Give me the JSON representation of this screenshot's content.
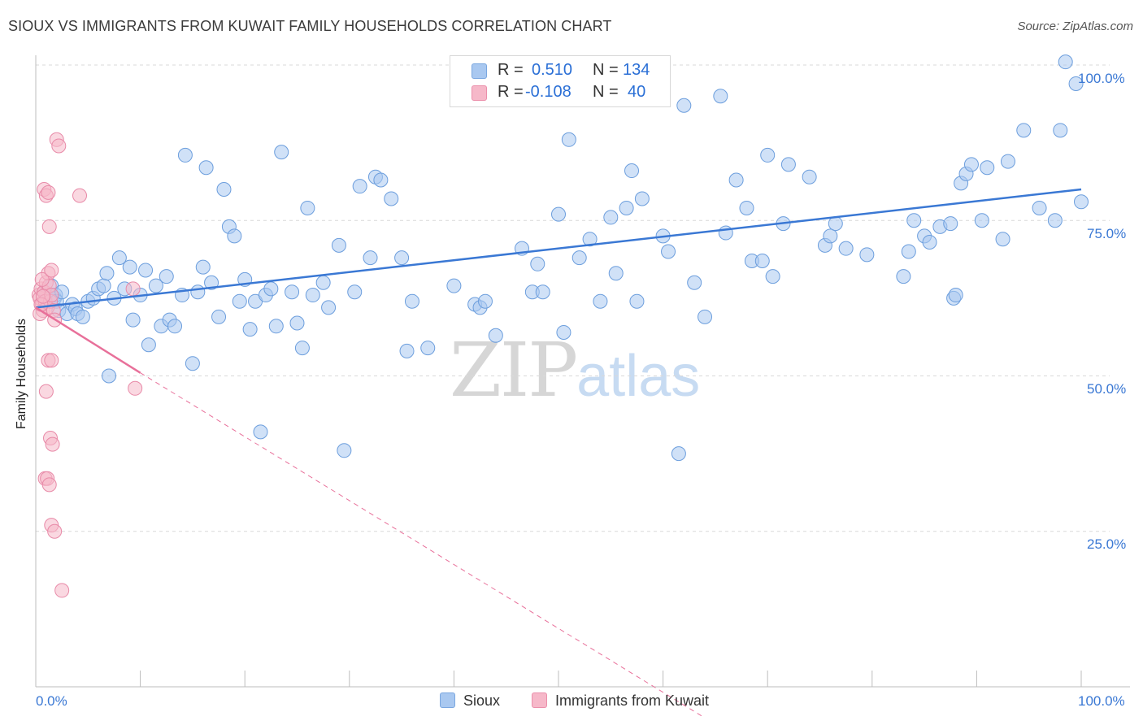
{
  "header": {
    "title": "SIOUX VS IMMIGRANTS FROM KUWAIT FAMILY HOUSEHOLDS CORRELATION CHART",
    "source": "Source: ZipAtlas.com"
  },
  "watermark": {
    "zip": "ZIP",
    "atlas": "atlas"
  },
  "stats_legend": {
    "rows": [
      {
        "r_label": "R =",
        "r_value": "0.510",
        "n_label": "N =",
        "n_value": "134",
        "color": "#a9c8f0"
      },
      {
        "r_label": "R =",
        "r_value": "-0.108",
        "n_label": "N =",
        "n_value": "40",
        "color": "#f6b8c9"
      }
    ]
  },
  "bottom_legend": {
    "items": [
      {
        "label": "Sioux",
        "color": "#a9c8f0"
      },
      {
        "label": "Immigrants from Kuwait",
        "color": "#f6b8c9"
      }
    ]
  },
  "chart_data": {
    "type": "scatter",
    "title": "SIOUX VS IMMIGRANTS FROM KUWAIT FAMILY HOUSEHOLDS CORRELATION CHART",
    "xlabel": "",
    "ylabel": "Family Households",
    "xlim": [
      0,
      100
    ],
    "ylim": [
      0,
      100
    ],
    "x_tick_labels": [
      "0.0%",
      "100.0%"
    ],
    "y_tick_labels": [
      "25.0%",
      "50.0%",
      "75.0%",
      "100.0%"
    ],
    "y_ticks": [
      25,
      50,
      75,
      100
    ],
    "grid": "horizontal dashed",
    "legend": "bottom-center",
    "colors": {
      "sioux": "#3a78d4",
      "sioux_fill": "#a9c8f0",
      "kuwait": "#e8709a",
      "kuwait_fill": "#f6b8c9"
    },
    "series": [
      {
        "name": "Sioux",
        "trend": {
          "x": [
            0,
            100
          ],
          "y": [
            61.0,
            80.0
          ]
        },
        "points": [
          [
            0.8,
            63.5
          ],
          [
            1.0,
            63.0
          ],
          [
            1.5,
            64.5
          ],
          [
            1.8,
            62.5
          ],
          [
            1.9,
            63.0
          ],
          [
            2.0,
            62.0
          ],
          [
            2.2,
            60.5
          ],
          [
            2.5,
            63.5
          ],
          [
            3.0,
            60.0
          ],
          [
            3.5,
            61.5
          ],
          [
            3.8,
            60.8
          ],
          [
            4.0,
            60.0
          ],
          [
            4.5,
            59.5
          ],
          [
            5.0,
            62.0
          ],
          [
            5.5,
            62.5
          ],
          [
            6.0,
            64.0
          ],
          [
            6.5,
            64.5
          ],
          [
            6.8,
            66.5
          ],
          [
            7.0,
            50.0
          ],
          [
            7.5,
            62.5
          ],
          [
            8.0,
            69.0
          ],
          [
            8.5,
            64.0
          ],
          [
            9.0,
            67.5
          ],
          [
            9.3,
            59.0
          ],
          [
            10.0,
            63.0
          ],
          [
            10.5,
            67.0
          ],
          [
            10.8,
            55.0
          ],
          [
            11.5,
            64.5
          ],
          [
            12.0,
            58.0
          ],
          [
            12.5,
            66.0
          ],
          [
            12.8,
            59.0
          ],
          [
            13.3,
            58.0
          ],
          [
            14.0,
            63.0
          ],
          [
            14.3,
            85.5
          ],
          [
            15.0,
            52.0
          ],
          [
            15.5,
            63.5
          ],
          [
            16.0,
            67.5
          ],
          [
            16.3,
            83.5
          ],
          [
            16.8,
            65.0
          ],
          [
            17.5,
            59.5
          ],
          [
            18.0,
            80.0
          ],
          [
            18.5,
            74.0
          ],
          [
            19.0,
            72.5
          ],
          [
            19.5,
            62.0
          ],
          [
            20.0,
            65.5
          ],
          [
            20.5,
            57.5
          ],
          [
            21.0,
            62.0
          ],
          [
            21.5,
            41.0
          ],
          [
            22.0,
            63.0
          ],
          [
            22.5,
            64.0
          ],
          [
            23.0,
            58.0
          ],
          [
            23.5,
            86.0
          ],
          [
            24.5,
            63.5
          ],
          [
            25.0,
            58.5
          ],
          [
            25.5,
            54.5
          ],
          [
            26.0,
            77.0
          ],
          [
            26.5,
            63.0
          ],
          [
            27.5,
            65.0
          ],
          [
            28.0,
            61.0
          ],
          [
            29.0,
            71.0
          ],
          [
            29.5,
            38.0
          ],
          [
            30.5,
            63.5
          ],
          [
            31.0,
            80.5
          ],
          [
            32.0,
            69.0
          ],
          [
            32.5,
            82.0
          ],
          [
            33.0,
            81.5
          ],
          [
            34.0,
            78.5
          ],
          [
            35.0,
            69.0
          ],
          [
            35.5,
            54.0
          ],
          [
            36.0,
            62.0
          ],
          [
            37.5,
            54.5
          ],
          [
            40.0,
            64.5
          ],
          [
            42.0,
            61.5
          ],
          [
            42.5,
            61.0
          ],
          [
            43.0,
            62.0
          ],
          [
            44.0,
            56.5
          ],
          [
            46.5,
            70.5
          ],
          [
            47.5,
            63.5
          ],
          [
            48.0,
            68.0
          ],
          [
            48.5,
            63.5
          ],
          [
            50.0,
            76.0
          ],
          [
            50.5,
            57.0
          ],
          [
            51.0,
            88.0
          ],
          [
            52.0,
            69.0
          ],
          [
            53.0,
            72.0
          ],
          [
            54.0,
            62.0
          ],
          [
            55.0,
            75.5
          ],
          [
            55.5,
            66.5
          ],
          [
            56.5,
            77.0
          ],
          [
            57.0,
            83.0
          ],
          [
            57.5,
            62.0
          ],
          [
            58.0,
            78.5
          ],
          [
            60.0,
            72.5
          ],
          [
            60.5,
            70.0
          ],
          [
            61.5,
            37.5
          ],
          [
            62.0,
            93.5
          ],
          [
            63.0,
            65.0
          ],
          [
            64.0,
            59.5
          ],
          [
            65.5,
            95.0
          ],
          [
            66.0,
            73.0
          ],
          [
            67.0,
            81.5
          ],
          [
            68.0,
            77.0
          ],
          [
            68.5,
            68.5
          ],
          [
            69.5,
            68.5
          ],
          [
            70.0,
            85.5
          ],
          [
            70.5,
            66.0
          ],
          [
            71.5,
            74.5
          ],
          [
            72.0,
            84.0
          ],
          [
            74.0,
            82.0
          ],
          [
            75.5,
            71.0
          ],
          [
            76.0,
            72.5
          ],
          [
            76.5,
            74.5
          ],
          [
            77.5,
            70.5
          ],
          [
            79.5,
            69.5
          ],
          [
            83.0,
            66.0
          ],
          [
            83.5,
            70.0
          ],
          [
            84.0,
            75.0
          ],
          [
            85.0,
            72.5
          ],
          [
            85.5,
            71.5
          ],
          [
            86.5,
            74.0
          ],
          [
            87.5,
            74.5
          ],
          [
            87.8,
            62.5
          ],
          [
            88.0,
            63.0
          ],
          [
            88.5,
            81.0
          ],
          [
            89.0,
            82.5
          ],
          [
            89.5,
            84.0
          ],
          [
            90.5,
            75.0
          ],
          [
            91.0,
            83.5
          ],
          [
            92.5,
            72.0
          ],
          [
            93.0,
            84.5
          ],
          [
            94.5,
            89.5
          ],
          [
            96.0,
            77.0
          ],
          [
            97.5,
            75.0
          ],
          [
            98.0,
            89.5
          ],
          [
            98.5,
            100.5
          ],
          [
            99.5,
            97.0
          ],
          [
            100.0,
            78.0
          ]
        ]
      },
      {
        "name": "Immigrants from Kuwait",
        "trend": {
          "x": [
            0,
            10
          ],
          "y": [
            61.0,
            50.5
          ],
          "extended": {
            "x": [
              10,
              64
            ],
            "y": [
              50.5,
              -5
            ]
          }
        },
        "points": [
          [
            0.3,
            63.0
          ],
          [
            0.4,
            62.5
          ],
          [
            0.5,
            64.0
          ],
          [
            0.6,
            61.5
          ],
          [
            0.7,
            60.5
          ],
          [
            0.8,
            63.5
          ],
          [
            0.9,
            62.0
          ],
          [
            1.0,
            65.0
          ],
          [
            1.1,
            61.0
          ],
          [
            1.2,
            66.5
          ],
          [
            1.3,
            64.5
          ],
          [
            1.4,
            62.0
          ],
          [
            1.5,
            63.0
          ],
          [
            0.4,
            60.0
          ],
          [
            0.6,
            65.5
          ],
          [
            0.8,
            80.0
          ],
          [
            1.0,
            79.0
          ],
          [
            1.2,
            79.5
          ],
          [
            1.3,
            74.0
          ],
          [
            1.5,
            67.0
          ],
          [
            1.7,
            60.5
          ],
          [
            1.8,
            59.0
          ],
          [
            2.0,
            88.0
          ],
          [
            2.2,
            87.0
          ],
          [
            1.2,
            52.5
          ],
          [
            1.5,
            52.5
          ],
          [
            1.0,
            47.5
          ],
          [
            1.4,
            40.0
          ],
          [
            1.6,
            39.0
          ],
          [
            0.9,
            33.5
          ],
          [
            1.1,
            33.5
          ],
          [
            1.3,
            32.5
          ],
          [
            1.5,
            26.0
          ],
          [
            1.8,
            25.0
          ],
          [
            4.2,
            79.0
          ],
          [
            9.3,
            64.0
          ],
          [
            9.5,
            48.0
          ],
          [
            2.5,
            15.5
          ],
          [
            0.5,
            61.5
          ],
          [
            0.7,
            62.8
          ]
        ]
      }
    ]
  }
}
